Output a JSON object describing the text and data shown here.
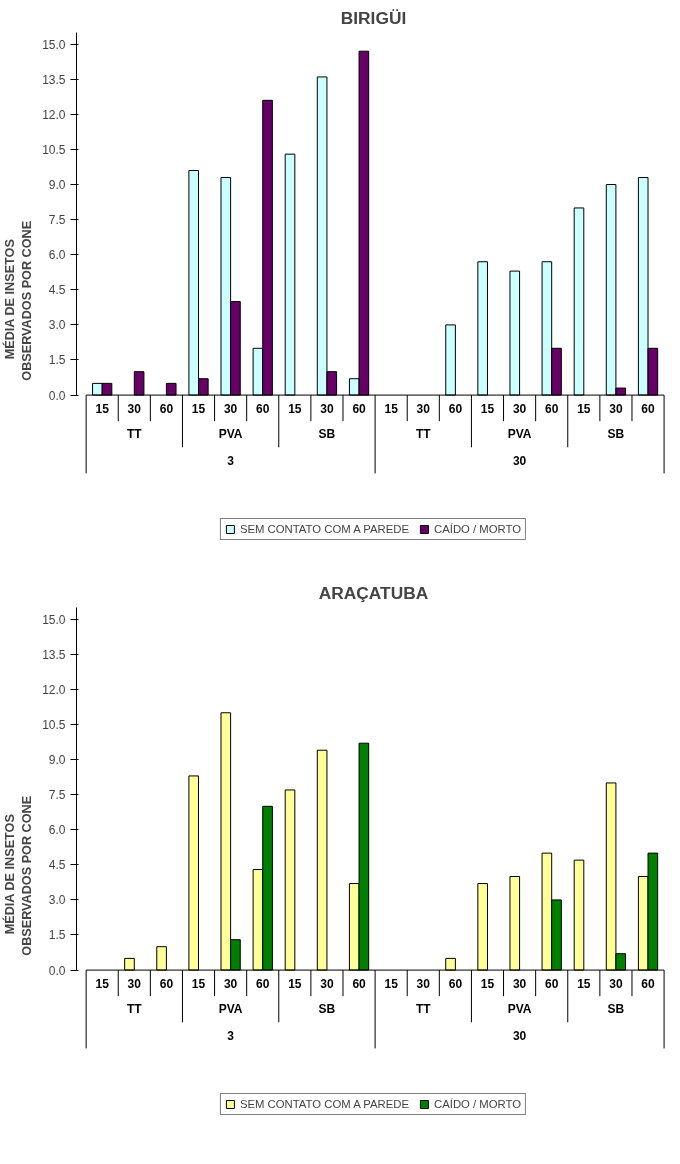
{
  "chart_data": [
    {
      "type": "bar",
      "title": "BIRIGÜI",
      "ylabel": "MÉDIA DE INSETOS\nOBSERVADOS  POR CONE",
      "categories": [
        "15",
        "30",
        "60",
        "15",
        "30",
        "60",
        "15",
        "30",
        "60",
        "15",
        "30",
        "60",
        "15",
        "30",
        "60",
        "15",
        "30",
        "60"
      ],
      "annotations": [
        "TT",
        "PVA",
        "SB",
        "TT",
        "PVA",
        "SB",
        "3",
        "30"
      ],
      "series": [
        {
          "name": "SEM CONTATO COM A PAREDE",
          "color": "#ccffff",
          "values": [
            0.5,
            null,
            null,
            9.6,
            9.3,
            2.0,
            10.3,
            13.6,
            0.7,
            null,
            null,
            3.0,
            5.7,
            5.3,
            5.7,
            8.0,
            9.0,
            9.3
          ]
        },
        {
          "name": "CAÍDO / MORTO",
          "color": "#660066",
          "values": [
            0.5,
            1.0,
            0.5,
            0.7,
            4.0,
            12.6,
            null,
            1.0,
            14.7,
            null,
            null,
            null,
            null,
            null,
            2.0,
            null,
            0.3,
            2.0
          ]
        }
      ],
      "ylim": [
        0,
        15.5
      ],
      "yticks": [
        {
          "value": 0,
          "label": "0.0"
        },
        {
          "value": 1.5,
          "label": "1.5"
        },
        {
          "value": 3,
          "label": "3.0"
        },
        {
          "value": 4.5,
          "label": "4.5"
        },
        {
          "value": 6,
          "label": "6.0"
        },
        {
          "value": 7.5,
          "label": "7.5"
        },
        {
          "value": 9,
          "label": "9.0"
        },
        {
          "value": 10.5,
          "label": "10.5"
        },
        {
          "value": 12,
          "label": "12.0"
        },
        {
          "value": 13.5,
          "label": "13.5"
        },
        {
          "value": 15,
          "label": "15.0"
        }
      ],
      "grid": false,
      "legend": "bottom"
    },
    {
      "type": "bar",
      "title": "ARAÇATUBA",
      "ylabel": "MÉDIA DE INSETOS\nOBSERVADOS  POR CONE",
      "categories": [
        "15",
        "30",
        "60",
        "15",
        "30",
        "60",
        "15",
        "30",
        "60",
        "15",
        "30",
        "60",
        "15",
        "30",
        "60",
        "15",
        "30",
        "60"
      ],
      "annotations": [
        "TT",
        "PVA",
        "SB",
        "TT",
        "PVA",
        "SB",
        "3",
        "30"
      ],
      "series": [
        {
          "name": "SEM CONTATO COM A PAREDE",
          "color": "#ffff99",
          "values": [
            null,
            0.5,
            1.0,
            8.3,
            11.0,
            4.3,
            7.7,
            9.4,
            3.7,
            null,
            null,
            0.5,
            3.7,
            4.0,
            5.0,
            4.7,
            8.0,
            4.0
          ]
        },
        {
          "name": "CAÍDO / MORTO",
          "color": "#008000",
          "values": [
            null,
            null,
            null,
            null,
            1.3,
            7.0,
            null,
            null,
            9.7,
            null,
            null,
            null,
            null,
            null,
            3.0,
            null,
            0.7,
            5.0
          ]
        }
      ],
      "ylim": [
        0,
        15.5
      ],
      "yticks": [
        {
          "value": 0,
          "label": "0.0"
        },
        {
          "value": 1.5,
          "label": "1.5"
        },
        {
          "value": 3,
          "label": "3.0"
        },
        {
          "value": 4.5,
          "label": "4.5"
        },
        {
          "value": 6,
          "label": "6.0"
        },
        {
          "value": 7.5,
          "label": "7.5"
        },
        {
          "value": 9,
          "label": "9.0"
        },
        {
          "value": 10.5,
          "label": "10.5"
        },
        {
          "value": 12,
          "label": "12.0"
        },
        {
          "value": 13.5,
          "label": "13.5"
        },
        {
          "value": 15,
          "label": "15.0"
        }
      ],
      "grid": false,
      "legend": "bottom"
    }
  ]
}
